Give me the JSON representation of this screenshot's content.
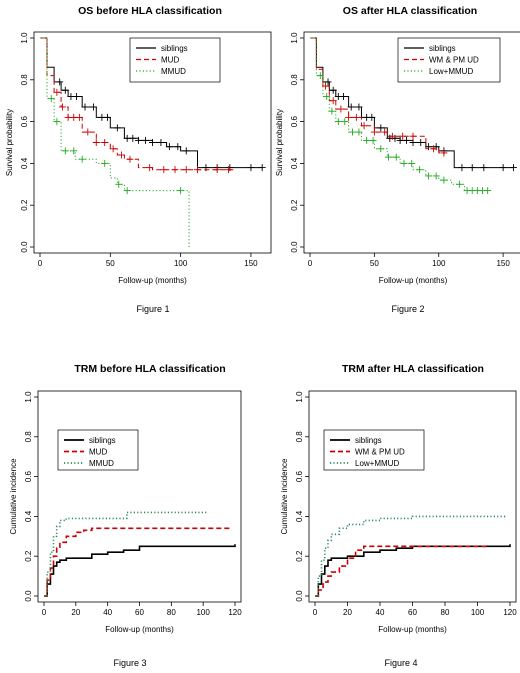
{
  "chart_data": [
    {
      "type": "line",
      "title": "OS before HLA classification",
      "xlabel": "Follow-up (months)",
      "ylabel": "Survival probability",
      "caption": "Figure 1",
      "xlim": [
        0,
        160
      ],
      "ylim": [
        0,
        1
      ],
      "xticks": [
        0,
        50,
        100,
        150
      ],
      "yticks": [
        0.0,
        0.2,
        0.4,
        0.6,
        0.8,
        1.0
      ],
      "ytick_labels": [
        "0.0",
        "0.2",
        "0.4",
        "0.6",
        "0.8",
        "1.0"
      ],
      "legend_position": "top-right",
      "series": [
        {
          "name": "siblings",
          "color": "#000000",
          "dash": "solid",
          "x": [
            0,
            5,
            10,
            15,
            20,
            30,
            40,
            50,
            60,
            70,
            80,
            90,
            100,
            112,
            158
          ],
          "y": [
            1.0,
            0.86,
            0.79,
            0.75,
            0.72,
            0.67,
            0.62,
            0.57,
            0.52,
            0.51,
            0.5,
            0.48,
            0.46,
            0.38,
            0.38
          ],
          "censor_x": [
            14,
            18,
            22,
            26,
            32,
            38,
            44,
            48,
            55,
            62,
            66,
            70,
            75,
            80,
            86,
            92,
            98,
            104,
            118,
            126,
            135,
            150,
            158
          ]
        },
        {
          "name": "MUD",
          "color": "#cc0000",
          "dash": "dashed",
          "x": [
            0,
            5,
            10,
            15,
            20,
            30,
            40,
            50,
            55,
            60,
            70,
            80,
            90,
            138
          ],
          "y": [
            1.0,
            0.82,
            0.74,
            0.67,
            0.62,
            0.55,
            0.5,
            0.47,
            0.44,
            0.42,
            0.38,
            0.37,
            0.37,
            0.37
          ],
          "censor_x": [
            12,
            16,
            20,
            24,
            28,
            34,
            40,
            46,
            52,
            58,
            64,
            78,
            88,
            96,
            104,
            112,
            126,
            134
          ]
        },
        {
          "name": "MMUD",
          "color": "#22aa22",
          "dash": "dotted",
          "x": [
            0,
            5,
            10,
            15,
            25,
            40,
            50,
            55,
            60,
            75,
            100,
            106,
            106
          ],
          "y": [
            1.0,
            0.71,
            0.6,
            0.46,
            0.42,
            0.4,
            0.33,
            0.3,
            0.27,
            0.27,
            0.27,
            0.27,
            0.0
          ],
          "censor_x": [
            8,
            12,
            18,
            24,
            30,
            46,
            56,
            62,
            100
          ]
        }
      ]
    },
    {
      "type": "line",
      "title": "OS after HLA classification",
      "xlabel": "Follow-up (months)",
      "ylabel": "Survival probability",
      "caption": "Figure 2",
      "xlim": [
        0,
        160
      ],
      "ylim": [
        0,
        1
      ],
      "xticks": [
        0,
        50,
        100,
        150
      ],
      "yticks": [
        0.0,
        0.2,
        0.4,
        0.6,
        0.8,
        1.0
      ],
      "ytick_labels": [
        "0.0",
        "0.2",
        "0.4",
        "0.6",
        "0.8",
        "1.0"
      ],
      "legend_position": "top-right",
      "series": [
        {
          "name": "siblings",
          "color": "#000000",
          "dash": "solid",
          "x": [
            0,
            5,
            10,
            15,
            20,
            30,
            40,
            50,
            60,
            70,
            80,
            90,
            100,
            112,
            158
          ],
          "y": [
            1.0,
            0.86,
            0.79,
            0.75,
            0.72,
            0.67,
            0.62,
            0.57,
            0.52,
            0.51,
            0.5,
            0.48,
            0.46,
            0.38,
            0.38
          ],
          "censor_x": [
            14,
            18,
            22,
            26,
            32,
            38,
            44,
            48,
            55,
            62,
            66,
            70,
            75,
            80,
            86,
            92,
            98,
            104,
            118,
            126,
            135,
            150,
            158
          ]
        },
        {
          "name": "WM & PM UD",
          "color": "#cc0000",
          "dash": "dashed",
          "x": [
            0,
            5,
            10,
            15,
            20,
            30,
            40,
            50,
            60,
            85,
            90,
            100,
            105
          ],
          "y": [
            1.0,
            0.85,
            0.77,
            0.7,
            0.66,
            0.62,
            0.58,
            0.55,
            0.53,
            0.53,
            0.47,
            0.45,
            0.45
          ],
          "censor_x": [
            12,
            18,
            24,
            30,
            36,
            42,
            50,
            58,
            64,
            72,
            80,
            96,
            104
          ]
        },
        {
          "name": "Low+MMUD",
          "color": "#22aa22",
          "dash": "dotted",
          "x": [
            0,
            5,
            10,
            15,
            20,
            30,
            40,
            50,
            60,
            70,
            80,
            90,
            100,
            110,
            120,
            138
          ],
          "y": [
            1.0,
            0.82,
            0.72,
            0.65,
            0.6,
            0.55,
            0.51,
            0.47,
            0.43,
            0.4,
            0.37,
            0.34,
            0.32,
            0.3,
            0.27,
            0.27
          ],
          "censor_x": [
            8,
            13,
            17,
            22,
            27,
            33,
            38,
            44,
            49,
            55,
            61,
            67,
            73,
            79,
            85,
            92,
            98,
            104,
            116,
            122,
            126,
            130,
            134,
            138
          ]
        }
      ]
    },
    {
      "type": "line",
      "title": "TRM before HLA classification",
      "xlabel": "Follow-up (months)",
      "ylabel": "Cumulative incidence",
      "caption": "Figure 3",
      "xlim": [
        0,
        120
      ],
      "ylim": [
        0,
        1
      ],
      "xticks": [
        0,
        20,
        40,
        60,
        80,
        100,
        120
      ],
      "yticks": [
        0.0,
        0.2,
        0.4,
        0.6,
        0.8,
        1.0
      ],
      "ytick_labels": [
        "0.0",
        "0.2",
        "0.4",
        "0.6",
        "0.8",
        "1.0"
      ],
      "legend_position": "middle-left",
      "series": [
        {
          "name": "siblings",
          "color": "#000000",
          "dash": "solid",
          "x": [
            0,
            2,
            4,
            6,
            8,
            10,
            14,
            20,
            30,
            40,
            50,
            60,
            80,
            100,
            120
          ],
          "y": [
            0.0,
            0.06,
            0.11,
            0.15,
            0.17,
            0.18,
            0.19,
            0.19,
            0.21,
            0.22,
            0.23,
            0.25,
            0.25,
            0.25,
            0.26
          ]
        },
        {
          "name": "MUD",
          "color": "#cc0000",
          "dash": "dashed",
          "x": [
            0,
            2,
            4,
            6,
            8,
            10,
            14,
            20,
            25,
            30,
            50,
            80,
            100,
            118
          ],
          "y": [
            0.0,
            0.08,
            0.14,
            0.2,
            0.24,
            0.27,
            0.3,
            0.32,
            0.33,
            0.34,
            0.34,
            0.34,
            0.34,
            0.34
          ]
        },
        {
          "name": "MMUD",
          "color": "#2e8b57",
          "dash": "dotted",
          "x": [
            0,
            2,
            4,
            6,
            8,
            10,
            14,
            20,
            50,
            52,
            80,
            100,
            103
          ],
          "y": [
            0.0,
            0.12,
            0.22,
            0.3,
            0.35,
            0.38,
            0.39,
            0.39,
            0.39,
            0.42,
            0.42,
            0.42,
            0.42
          ]
        }
      ]
    },
    {
      "type": "line",
      "title": "TRM after HLA classification",
      "xlabel": "Follow-up (months)",
      "ylabel": "Cumulative incidence",
      "caption": "Figure 4",
      "xlim": [
        0,
        120
      ],
      "ylim": [
        0,
        1
      ],
      "xticks": [
        0,
        20,
        40,
        60,
        80,
        100,
        120
      ],
      "yticks": [
        0.0,
        0.2,
        0.4,
        0.6,
        0.8,
        1.0
      ],
      "ytick_labels": [
        "0.0",
        "0.2",
        "0.4",
        "0.6",
        "0.8",
        "1.0"
      ],
      "legend_position": "middle-left",
      "series": [
        {
          "name": "siblings",
          "color": "#000000",
          "dash": "solid",
          "x": [
            0,
            2,
            4,
            6,
            8,
            10,
            15,
            20,
            30,
            40,
            50,
            60,
            80,
            100,
            120
          ],
          "y": [
            0.0,
            0.06,
            0.11,
            0.15,
            0.18,
            0.19,
            0.19,
            0.2,
            0.22,
            0.23,
            0.24,
            0.25,
            0.25,
            0.25,
            0.26
          ]
        },
        {
          "name": "WM & PM UD",
          "color": "#cc0000",
          "dash": "dashed",
          "x": [
            0,
            2,
            5,
            8,
            10,
            15,
            20,
            25,
            30,
            60,
            80,
            100,
            106
          ],
          "y": [
            0.0,
            0.03,
            0.07,
            0.1,
            0.12,
            0.15,
            0.19,
            0.23,
            0.25,
            0.25,
            0.25,
            0.25,
            0.25
          ]
        },
        {
          "name": "Low+MMUD",
          "color": "#2e8b57",
          "dash": "dotted",
          "x": [
            0,
            2,
            4,
            6,
            8,
            10,
            15,
            20,
            30,
            40,
            60,
            80,
            100,
            118
          ],
          "y": [
            0.0,
            0.1,
            0.18,
            0.24,
            0.28,
            0.31,
            0.34,
            0.36,
            0.38,
            0.39,
            0.4,
            0.4,
            0.4,
            0.4
          ]
        }
      ]
    }
  ]
}
